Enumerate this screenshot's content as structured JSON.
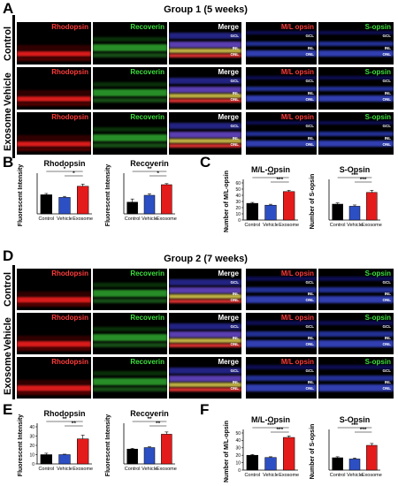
{
  "figure": {
    "panels": {
      "A": "A",
      "B": "B",
      "C": "C",
      "D": "D",
      "E": "E",
      "F": "F"
    },
    "group1_title": "Group 1 (5 weeks)",
    "group2_title": "Group 2 (7 weeks)",
    "row_labels": [
      "Control",
      "Vehicle",
      "Exosome"
    ],
    "tile_labels": {
      "rhodopsin": "Rhodopsin",
      "recoverin": "Recoverin",
      "merge": "Merge",
      "ml_opsin": "M/L opsin",
      "s_opsin": "S-opsin"
    },
    "layers": {
      "gcl": "GCL",
      "inl": "INL",
      "onl": "ONL"
    },
    "categories": [
      "Control",
      "Vehicle",
      "Exosome"
    ],
    "colors": {
      "control": "#000000",
      "vehicle": "#2d4fc4",
      "exosome": "#e41b1b"
    }
  },
  "chart_data": [
    {
      "panel": "B",
      "type": "bar",
      "title": "Rhodopsin",
      "ylabel": "Fluorescent Intensity",
      "categories": [
        "Control",
        "Vehicle",
        "Exosome"
      ],
      "values": [
        18,
        15.5,
        26
      ],
      "errors": [
        1.2,
        1.0,
        2.0
      ],
      "ylim": [
        0,
        35
      ],
      "yticks": [],
      "significance": [
        "*",
        "*"
      ]
    },
    {
      "panel": "B",
      "type": "bar",
      "title": "Recoverin",
      "ylabel": "Fluorescent Intensity",
      "categories": [
        "Control",
        "Vehicle",
        "Exosome"
      ],
      "values": [
        22,
        35,
        55
      ],
      "errors": [
        6,
        3,
        2
      ],
      "ylim": [
        0,
        70
      ],
      "yticks": [],
      "significance": [
        "**",
        "*"
      ]
    },
    {
      "panel": "C",
      "type": "bar",
      "title": "M/L-Opsin",
      "ylabel": "Number of M/L-opsin",
      "categories": [
        "Control",
        "Vehicle",
        "Exosome"
      ],
      "values": [
        27,
        24,
        46
      ],
      "errors": [
        1.5,
        1.5,
        2
      ],
      "ylim": [
        0,
        60
      ],
      "yticks": [
        "0",
        "10",
        "20",
        "30",
        "40",
        "50",
        "60"
      ],
      "significance": [
        "***",
        "***"
      ]
    },
    {
      "panel": "C",
      "type": "bar",
      "title": "S-Opsin",
      "ylabel": "Number of S-opsin",
      "categories": [
        "Control",
        "Vehicle",
        "Exosome"
      ],
      "values": [
        15,
        13,
        26
      ],
      "errors": [
        1.2,
        1.2,
        2
      ],
      "ylim": [
        0,
        35
      ],
      "yticks": [],
      "significance": [
        "***",
        "***"
      ]
    },
    {
      "panel": "E",
      "type": "bar",
      "title": "Rhodopsin",
      "ylabel": "Fluorescent Intensity",
      "categories": [
        "Control",
        "Vehicle",
        "Exosome"
      ],
      "values": [
        10,
        10,
        27
      ],
      "errors": [
        1.5,
        0.5,
        4
      ],
      "ylim": [
        0,
        40
      ],
      "yticks": [
        "0",
        "10",
        "20",
        "30",
        "40"
      ],
      "significance": [
        "**",
        "**"
      ]
    },
    {
      "panel": "E",
      "type": "bar",
      "title": "Recoverin",
      "ylabel": "Fluorescent Intensity",
      "categories": [
        "Control",
        "Vehicle",
        "Exosome"
      ],
      "values": [
        20,
        22,
        40
      ],
      "errors": [
        1,
        1,
        3
      ],
      "ylim": [
        0,
        50
      ],
      "yticks": [],
      "significance": [
        "**",
        "**"
      ]
    },
    {
      "panel": "F",
      "type": "bar",
      "title": "M/L-Opsin",
      "ylabel": "Number of M/L-opsin",
      "categories": [
        "Control",
        "Vehicle",
        "Exosome"
      ],
      "values": [
        20,
        17,
        44
      ],
      "errors": [
        1,
        1,
        2
      ],
      "ylim": [
        0,
        50
      ],
      "yticks": [
        "0",
        "10",
        "20",
        "30",
        "40",
        "50"
      ],
      "significance": [
        "***",
        "***"
      ]
    },
    {
      "panel": "F",
      "type": "bar",
      "title": "S-Opsin",
      "ylabel": "Number of S-opsin",
      "categories": [
        "Control",
        "Vehicle",
        "Exosome"
      ],
      "values": [
        10,
        9,
        20
      ],
      "errors": [
        0.8,
        0.8,
        1.5
      ],
      "ylim": [
        0,
        30
      ],
      "yticks": [],
      "significance": [
        "***",
        "***"
      ]
    }
  ]
}
